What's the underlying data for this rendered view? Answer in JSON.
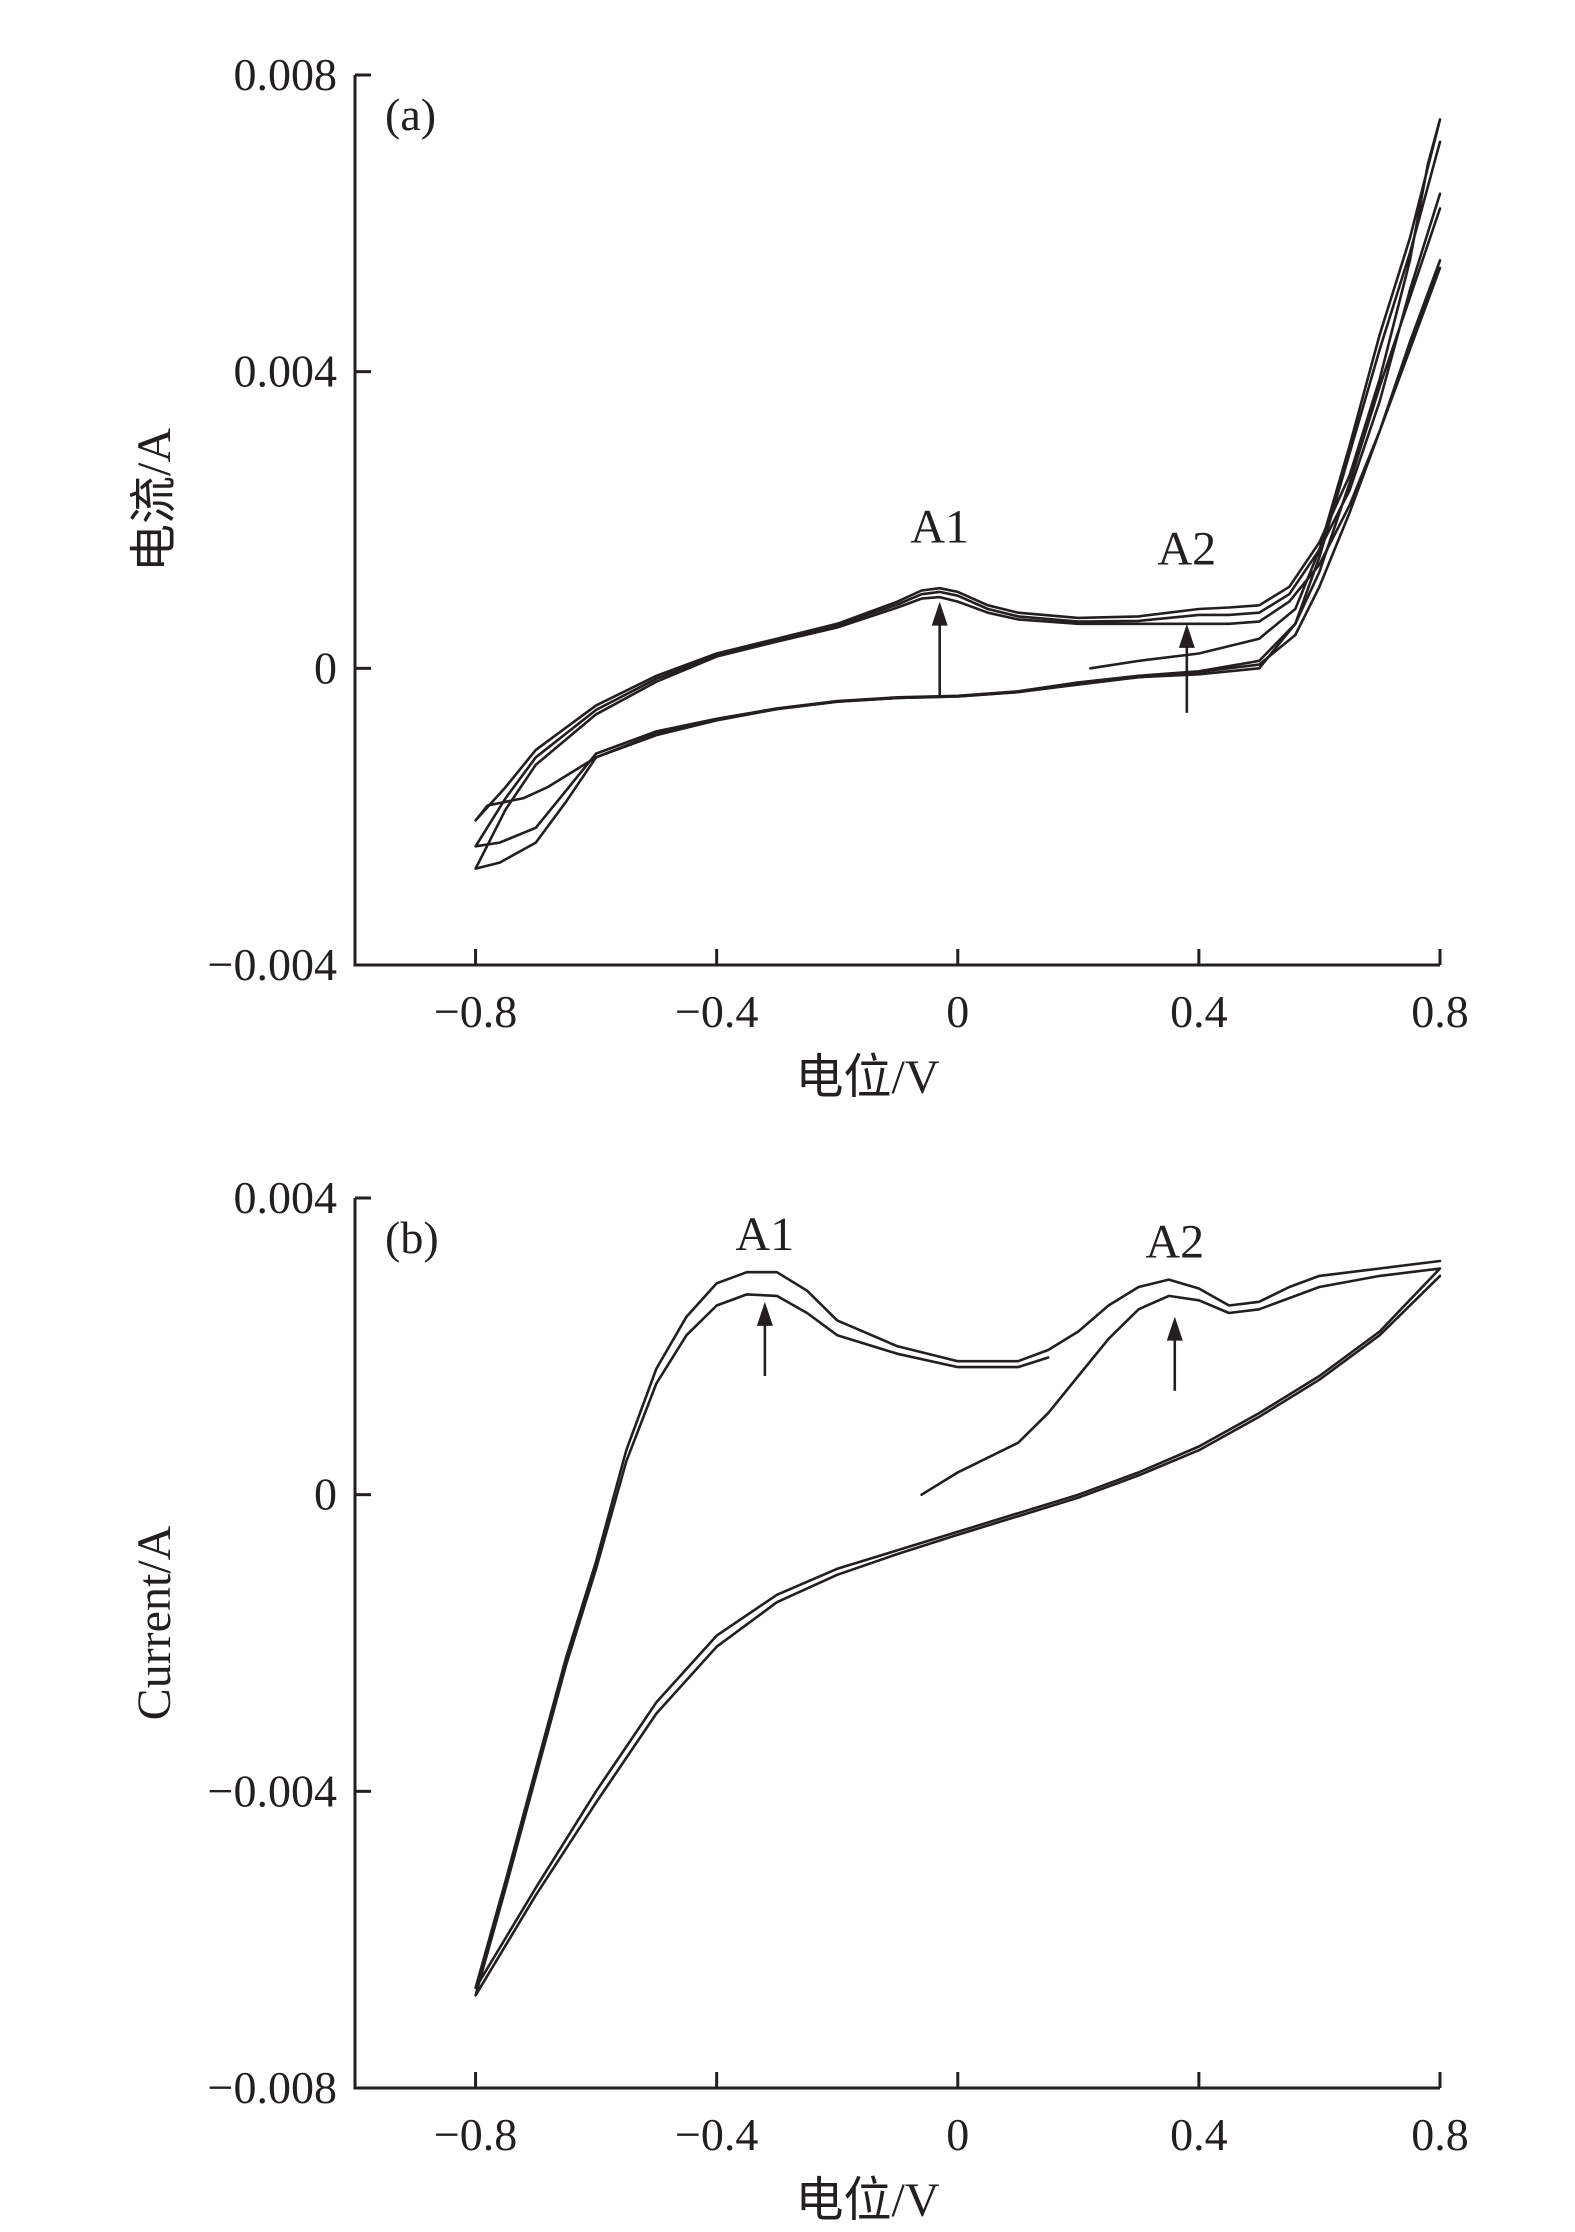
{
  "chart_data": [
    {
      "type": "line",
      "panel_label": "(a)",
      "xlabel": "电位/V",
      "ylabel": "电流/A",
      "xlim": [
        -1.0,
        0.8
      ],
      "ylim": [
        -0.004,
        0.008
      ],
      "xticks": [
        {
          "value": -0.8,
          "label": "−0.8"
        },
        {
          "value": -0.4,
          "label": "−0.4"
        },
        {
          "value": 0,
          "label": "0"
        },
        {
          "value": 0.4,
          "label": "0.4"
        },
        {
          "value": 0.8,
          "label": "0.8"
        }
      ],
      "yticks": [
        {
          "value": -0.004,
          "label": "−0.004"
        },
        {
          "value": 0,
          "label": "0"
        },
        {
          "value": 0.004,
          "label": "0.004"
        },
        {
          "value": 0.008,
          "label": "0.008"
        }
      ],
      "annotations": [
        {
          "text": "A1",
          "x": -0.03,
          "y_label": 0.0017,
          "arrow_from": -0.0004,
          "arrow_to": 0.0009
        },
        {
          "text": "A2",
          "x": 0.38,
          "y_label": 0.0014,
          "arrow_from": -0.0006,
          "arrow_to": 0.0006
        }
      ],
      "series": [
        {
          "values": [
            [
              0.22,
              0.0
            ],
            [
              0.3,
              0.0001
            ],
            [
              0.4,
              0.0002
            ],
            [
              0.5,
              0.0004
            ],
            [
              0.56,
              0.0008
            ],
            [
              0.6,
              0.0016
            ],
            [
              0.65,
              0.003
            ],
            [
              0.7,
              0.0045
            ],
            [
              0.75,
              0.0058
            ],
            [
              0.8,
              0.0074
            ],
            [
              0.78,
              0.0068
            ],
            [
              0.75,
              0.0055
            ],
            [
              0.7,
              0.0039
            ],
            [
              0.65,
              0.0026
            ],
            [
              0.6,
              0.0017
            ],
            [
              0.55,
              0.0011
            ],
            [
              0.5,
              0.00085
            ],
            [
              0.45,
              0.00082
            ],
            [
              0.4,
              0.0008
            ],
            [
              0.3,
              0.0007
            ],
            [
              0.2,
              0.00068
            ],
            [
              0.1,
              0.00075
            ],
            [
              0.05,
              0.00085
            ],
            [
              0.0,
              0.00103
            ],
            [
              -0.03,
              0.00108
            ],
            [
              -0.06,
              0.00105
            ],
            [
              -0.1,
              0.0009
            ],
            [
              -0.2,
              0.0006
            ],
            [
              -0.3,
              0.0004
            ],
            [
              -0.4,
              0.0002
            ],
            [
              -0.5,
              -0.0001
            ],
            [
              -0.6,
              -0.0005
            ],
            [
              -0.7,
              -0.0011
            ],
            [
              -0.75,
              -0.0016
            ],
            [
              -0.8,
              -0.00205
            ],
            [
              -0.78,
              -0.00185
            ],
            [
              -0.72,
              -0.00175
            ],
            [
              -0.68,
              -0.0016
            ],
            [
              -0.6,
              -0.0012
            ],
            [
              -0.5,
              -0.0009
            ],
            [
              -0.4,
              -0.0007
            ],
            [
              -0.3,
              -0.00055
            ],
            [
              -0.2,
              -0.00045
            ],
            [
              -0.1,
              -0.0004
            ],
            [
              0.0,
              -0.00038
            ],
            [
              0.1,
              -0.00032
            ],
            [
              0.2,
              -0.0002
            ],
            [
              0.3,
              -0.00012
            ],
            [
              0.4,
              -8e-05
            ],
            [
              0.5,
              0.0
            ],
            [
              0.56,
              0.0006
            ],
            [
              0.6,
              0.0015
            ],
            [
              0.65,
              0.0029
            ],
            [
              0.7,
              0.0043
            ],
            [
              0.75,
              0.0056
            ],
            [
              0.8,
              0.0071
            ]
          ]
        },
        {
          "values": [
            [
              0.8,
              0.0064
            ],
            [
              0.75,
              0.0051
            ],
            [
              0.7,
              0.0036
            ],
            [
              0.65,
              0.0024
            ],
            [
              0.6,
              0.0016
            ],
            [
              0.55,
              0.001
            ],
            [
              0.5,
              0.00075
            ],
            [
              0.45,
              0.00072
            ],
            [
              0.4,
              0.00072
            ],
            [
              0.3,
              0.00064
            ],
            [
              0.2,
              0.00063
            ],
            [
              0.1,
              0.0007
            ],
            [
              0.05,
              0.0008
            ],
            [
              0.0,
              0.00098
            ],
            [
              -0.03,
              0.00103
            ],
            [
              -0.06,
              0.001
            ],
            [
              -0.1,
              0.00086
            ],
            [
              -0.2,
              0.00058
            ],
            [
              -0.3,
              0.00038
            ],
            [
              -0.4,
              0.00018
            ],
            [
              -0.5,
              -0.00014
            ],
            [
              -0.6,
              -0.00056
            ],
            [
              -0.7,
              -0.0012
            ],
            [
              -0.75,
              -0.00175
            ],
            [
              -0.8,
              -0.0024
            ],
            [
              -0.76,
              -0.00235
            ],
            [
              -0.7,
              -0.00215
            ],
            [
              -0.65,
              -0.00165
            ],
            [
              -0.6,
              -0.00115
            ],
            [
              -0.5,
              -0.00085
            ],
            [
              -0.4,
              -0.00068
            ],
            [
              -0.3,
              -0.00054
            ],
            [
              -0.2,
              -0.00044
            ],
            [
              -0.1,
              -0.00039
            ],
            [
              0.0,
              -0.00037
            ],
            [
              0.1,
              -0.00031
            ],
            [
              0.2,
              -0.00019
            ],
            [
              0.3,
              -0.0001
            ],
            [
              0.4,
              -4e-05
            ],
            [
              0.5,
              0.0001
            ],
            [
              0.56,
              0.0006
            ],
            [
              0.6,
              0.0013
            ],
            [
              0.65,
              0.0025
            ],
            [
              0.7,
              0.0038
            ],
            [
              0.75,
              0.005
            ],
            [
              0.8,
              0.0062
            ]
          ]
        },
        {
          "values": [
            [
              0.8,
              0.0055
            ],
            [
              0.75,
              0.0044
            ],
            [
              0.7,
              0.0032
            ],
            [
              0.65,
              0.0022
            ],
            [
              0.6,
              0.0014
            ],
            [
              0.55,
              0.0009
            ],
            [
              0.5,
              0.00063
            ],
            [
              0.45,
              0.0006
            ],
            [
              0.4,
              0.0006
            ],
            [
              0.3,
              0.0006
            ],
            [
              0.2,
              0.0006
            ],
            [
              0.1,
              0.00066
            ],
            [
              0.05,
              0.00075
            ],
            [
              0.0,
              0.0009
            ],
            [
              -0.03,
              0.00096
            ],
            [
              -0.06,
              0.00094
            ],
            [
              -0.1,
              0.00082
            ],
            [
              -0.2,
              0.00055
            ],
            [
              -0.3,
              0.00036
            ],
            [
              -0.4,
              0.00016
            ],
            [
              -0.5,
              -0.00018
            ],
            [
              -0.6,
              -0.00062
            ],
            [
              -0.7,
              -0.0013
            ],
            [
              -0.75,
              -0.0019
            ],
            [
              -0.8,
              -0.0027
            ],
            [
              -0.76,
              -0.00262
            ],
            [
              -0.7,
              -0.00235
            ],
            [
              -0.65,
              -0.0018
            ],
            [
              -0.6,
              -0.0012
            ],
            [
              -0.5,
              -0.00088
            ],
            [
              -0.4,
              -0.00069
            ],
            [
              -0.3,
              -0.00055
            ],
            [
              -0.2,
              -0.00045
            ],
            [
              -0.1,
              -0.0004
            ],
            [
              0.0,
              -0.00038
            ],
            [
              0.1,
              -0.00032
            ],
            [
              0.2,
              -0.00022
            ],
            [
              0.3,
              -0.00012
            ],
            [
              0.4,
              -5e-05
            ],
            [
              0.5,
              5e-05
            ],
            [
              0.56,
              0.00045
            ],
            [
              0.6,
              0.0011
            ],
            [
              0.65,
              0.0021
            ],
            [
              0.7,
              0.0032
            ],
            [
              0.75,
              0.0043
            ],
            [
              0.8,
              0.0054
            ]
          ]
        }
      ]
    },
    {
      "type": "line",
      "panel_label": "(b)",
      "xlabel": "电位/V",
      "ylabel": "Current/A",
      "xlim": [
        -1.0,
        0.8
      ],
      "ylim": [
        -0.008,
        0.004
      ],
      "xticks": [
        {
          "value": -0.8,
          "label": "−0.8"
        },
        {
          "value": -0.4,
          "label": "−0.4"
        },
        {
          "value": 0,
          "label": "0"
        },
        {
          "value": 0.4,
          "label": "0.4"
        },
        {
          "value": 0.8,
          "label": "0.8"
        }
      ],
      "yticks": [
        {
          "value": -0.008,
          "label": "−0.008"
        },
        {
          "value": -0.004,
          "label": "−0.004"
        },
        {
          "value": 0,
          "label": "0"
        },
        {
          "value": 0.004,
          "label": "0.004"
        }
      ],
      "annotations": [
        {
          "text": "A1",
          "x": -0.32,
          "y_label": 0.0033,
          "arrow_from": 0.0016,
          "arrow_to": 0.0026
        },
        {
          "text": "A2",
          "x": 0.36,
          "y_label": 0.0032,
          "arrow_from": 0.0014,
          "arrow_to": 0.0024
        }
      ],
      "series": [
        {
          "values": [
            [
              -0.06,
              0.0
            ],
            [
              0.0,
              0.0003
            ],
            [
              0.1,
              0.0007
            ],
            [
              0.15,
              0.0011
            ],
            [
              0.2,
              0.0016
            ],
            [
              0.25,
              0.0021
            ],
            [
              0.3,
              0.0025
            ],
            [
              0.35,
              0.00268
            ],
            [
              0.4,
              0.00262
            ],
            [
              0.45,
              0.00245
            ],
            [
              0.5,
              0.0025
            ],
            [
              0.55,
              0.00265
            ],
            [
              0.6,
              0.0028
            ],
            [
              0.7,
              0.00295
            ],
            [
              0.8,
              0.00305
            ],
            [
              0.7,
              0.0022
            ],
            [
              0.6,
              0.0016
            ],
            [
              0.5,
              0.0011
            ],
            [
              0.4,
              0.00065
            ],
            [
              0.3,
              0.0003
            ],
            [
              0.2,
              0.0
            ],
            [
              0.1,
              -0.00025
            ],
            [
              0.0,
              -0.0005
            ],
            [
              -0.1,
              -0.00075
            ],
            [
              -0.2,
              -0.001
            ],
            [
              -0.3,
              -0.00135
            ],
            [
              -0.4,
              -0.0019
            ],
            [
              -0.5,
              -0.0028
            ],
            [
              -0.6,
              -0.004
            ],
            [
              -0.7,
              -0.0053
            ],
            [
              -0.8,
              -0.00665
            ],
            [
              -0.75,
              -0.0052
            ],
            [
              -0.7,
              -0.0037
            ],
            [
              -0.65,
              -0.0022
            ],
            [
              -0.6,
              -0.0009
            ],
            [
              -0.55,
              0.0006
            ],
            [
              -0.5,
              0.0017
            ],
            [
              -0.45,
              0.0024
            ],
            [
              -0.4,
              0.00285
            ],
            [
              -0.35,
              0.003
            ],
            [
              -0.3,
              0.003
            ],
            [
              -0.25,
              0.00275
            ],
            [
              -0.2,
              0.00235
            ],
            [
              -0.1,
              0.002
            ],
            [
              0.0,
              0.0018
            ],
            [
              0.1,
              0.0018
            ],
            [
              0.15,
              0.00195
            ],
            [
              0.2,
              0.0022
            ],
            [
              0.25,
              0.00255
            ],
            [
              0.3,
              0.0028
            ],
            [
              0.35,
              0.0029
            ],
            [
              0.4,
              0.00278
            ],
            [
              0.45,
              0.00255
            ],
            [
              0.5,
              0.0026
            ],
            [
              0.55,
              0.0028
            ],
            [
              0.6,
              0.00295
            ],
            [
              0.7,
              0.00305
            ],
            [
              0.8,
              0.00315
            ]
          ]
        },
        {
          "values": [
            [
              0.8,
              0.00295
            ],
            [
              0.7,
              0.00215
            ],
            [
              0.6,
              0.00155
            ],
            [
              0.5,
              0.00105
            ],
            [
              0.4,
              0.0006
            ],
            [
              0.3,
              0.00026
            ],
            [
              0.2,
              -4e-05
            ],
            [
              0.1,
              -0.00029
            ],
            [
              0.0,
              -0.00054
            ],
            [
              -0.1,
              -0.0008
            ],
            [
              -0.2,
              -0.00108
            ],
            [
              -0.3,
              -0.00145
            ],
            [
              -0.4,
              -0.00205
            ],
            [
              -0.5,
              -0.00295
            ],
            [
              -0.6,
              -0.00415
            ],
            [
              -0.7,
              -0.0054
            ],
            [
              -0.8,
              -0.00675
            ],
            [
              -0.75,
              -0.0053
            ],
            [
              -0.7,
              -0.0038
            ],
            [
              -0.65,
              -0.0023
            ],
            [
              -0.6,
              -0.001
            ],
            [
              -0.55,
              0.00045
            ],
            [
              -0.5,
              0.0015
            ],
            [
              -0.45,
              0.00215
            ],
            [
              -0.4,
              0.00255
            ],
            [
              -0.35,
              0.0027
            ],
            [
              -0.3,
              0.00268
            ],
            [
              -0.25,
              0.00245
            ],
            [
              -0.2,
              0.00215
            ],
            [
              -0.1,
              0.0019
            ],
            [
              0.0,
              0.00172
            ],
            [
              0.1,
              0.00172
            ],
            [
              0.15,
              0.00185
            ]
          ]
        }
      ]
    }
  ]
}
